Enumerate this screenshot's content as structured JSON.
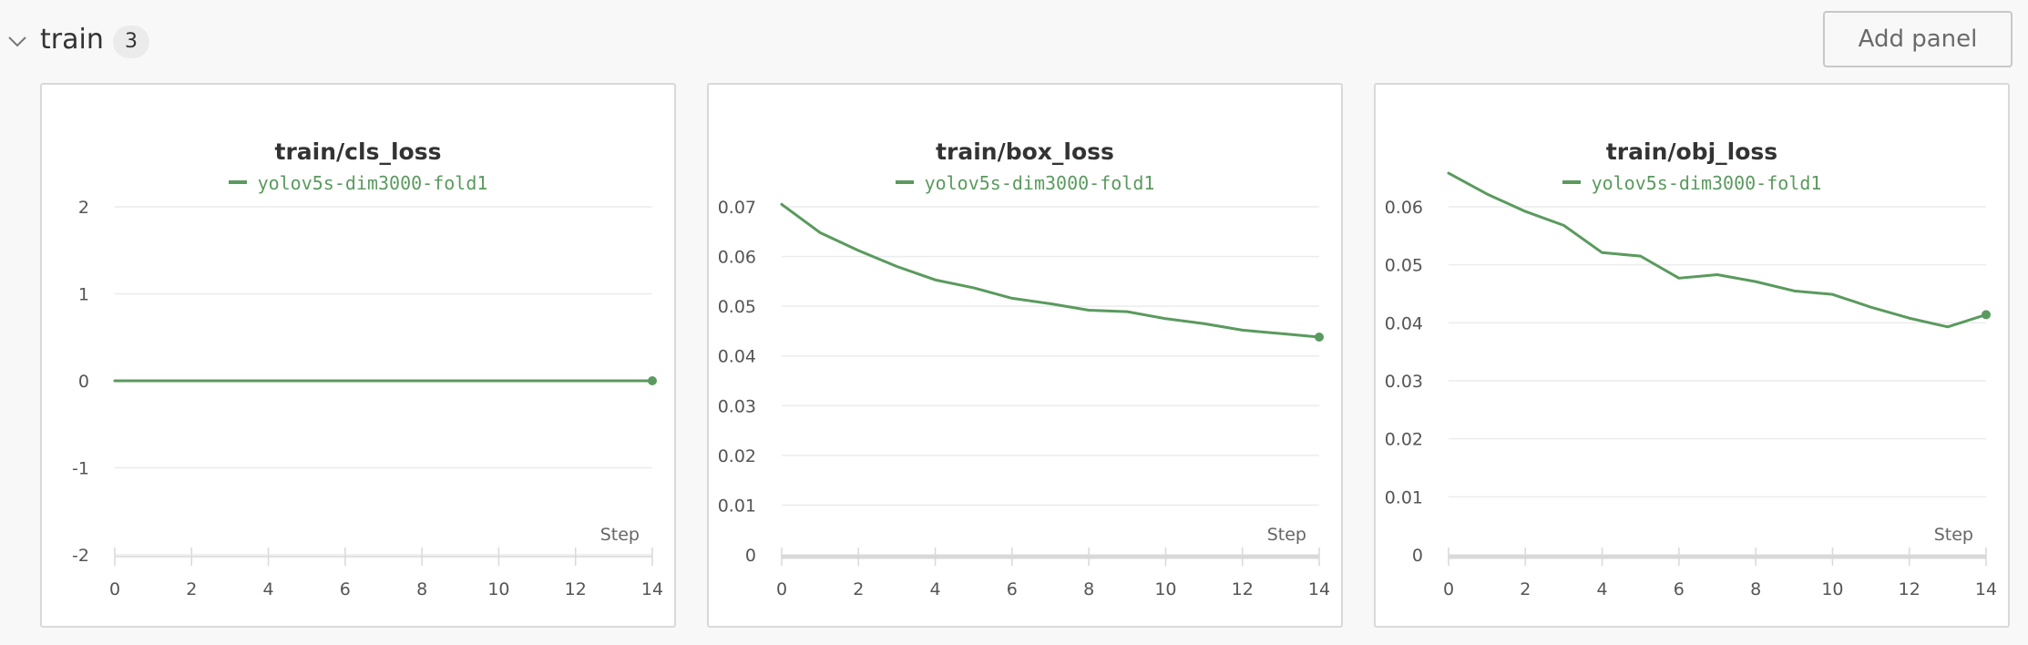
{
  "section": {
    "title": "train",
    "count": "3",
    "add_panel_label": "Add panel",
    "chevron_icon": "chevron-down-icon"
  },
  "colors": {
    "series": "#5a9a5e",
    "grid": "#ececec",
    "axis": "#d9d9d9"
  },
  "panels": [
    {
      "title": "train/cls_loss",
      "legend": "yolov5s-dim3000-fold1"
    },
    {
      "title": "train/box_loss",
      "legend": "yolov5s-dim3000-fold1"
    },
    {
      "title": "train/obj_loss",
      "legend": "yolov5s-dim3000-fold1"
    }
  ],
  "chart_data": [
    {
      "type": "line",
      "title": "train/cls_loss",
      "xlabel": "Step",
      "ylabel": "",
      "xlim": [
        0,
        14
      ],
      "ylim": [
        -2,
        2
      ],
      "x_ticks": [
        0,
        2,
        4,
        6,
        8,
        10,
        12,
        14
      ],
      "y_ticks": [
        -2,
        -1,
        0,
        1,
        2
      ],
      "y_tick_labels": [
        "-2",
        "-1",
        "0",
        "1",
        "2"
      ],
      "grid": true,
      "legend_position": "top-center",
      "series": [
        {
          "name": "yolov5s-dim3000-fold1",
          "x": [
            0,
            1,
            2,
            3,
            4,
            5,
            6,
            7,
            8,
            9,
            10,
            11,
            12,
            13,
            14
          ],
          "values": [
            0,
            0,
            0,
            0,
            0,
            0,
            0,
            0,
            0,
            0,
            0,
            0,
            0,
            0,
            0
          ]
        }
      ]
    },
    {
      "type": "line",
      "title": "train/box_loss",
      "xlabel": "Step",
      "ylabel": "",
      "xlim": [
        0,
        14
      ],
      "ylim": [
        0,
        0.07
      ],
      "x_ticks": [
        0,
        2,
        4,
        6,
        8,
        10,
        12,
        14
      ],
      "y_ticks": [
        0,
        0.01,
        0.02,
        0.03,
        0.04,
        0.05,
        0.06,
        0.07
      ],
      "y_tick_labels": [
        "0",
        "0.01",
        "0.02",
        "0.03",
        "0.04",
        "0.05",
        "0.06",
        "0.07"
      ],
      "grid": true,
      "legend_position": "top-center",
      "series": [
        {
          "name": "yolov5s-dim3000-fold1",
          "x": [
            0,
            1,
            2,
            3,
            4,
            5,
            6,
            7,
            8,
            9,
            10,
            11,
            12,
            13,
            14
          ],
          "values": [
            0.0705,
            0.0648,
            0.0612,
            0.058,
            0.0553,
            0.0537,
            0.0516,
            0.0505,
            0.0492,
            0.0489,
            0.0475,
            0.0465,
            0.0452,
            0.0445,
            0.0438
          ]
        }
      ]
    },
    {
      "type": "line",
      "title": "train/obj_loss",
      "xlabel": "Step",
      "ylabel": "",
      "xlim": [
        0,
        14
      ],
      "ylim": [
        0,
        0.06
      ],
      "x_ticks": [
        0,
        2,
        4,
        6,
        8,
        10,
        12,
        14
      ],
      "y_ticks": [
        0,
        0.01,
        0.02,
        0.03,
        0.04,
        0.05,
        0.06
      ],
      "y_tick_labels": [
        "0",
        "0.01",
        "0.02",
        "0.03",
        "0.04",
        "0.05",
        "0.06"
      ],
      "grid": true,
      "legend_position": "top-center",
      "series": [
        {
          "name": "yolov5s-dim3000-fold1",
          "x": [
            0,
            1,
            2,
            3,
            4,
            5,
            6,
            7,
            8,
            9,
            10,
            11,
            12,
            13,
            14
          ],
          "values": [
            0.0658,
            0.0622,
            0.0592,
            0.0568,
            0.0521,
            0.0515,
            0.0477,
            0.0483,
            0.0471,
            0.0455,
            0.0449,
            0.0427,
            0.0408,
            0.0393,
            0.0414
          ]
        }
      ]
    }
  ]
}
